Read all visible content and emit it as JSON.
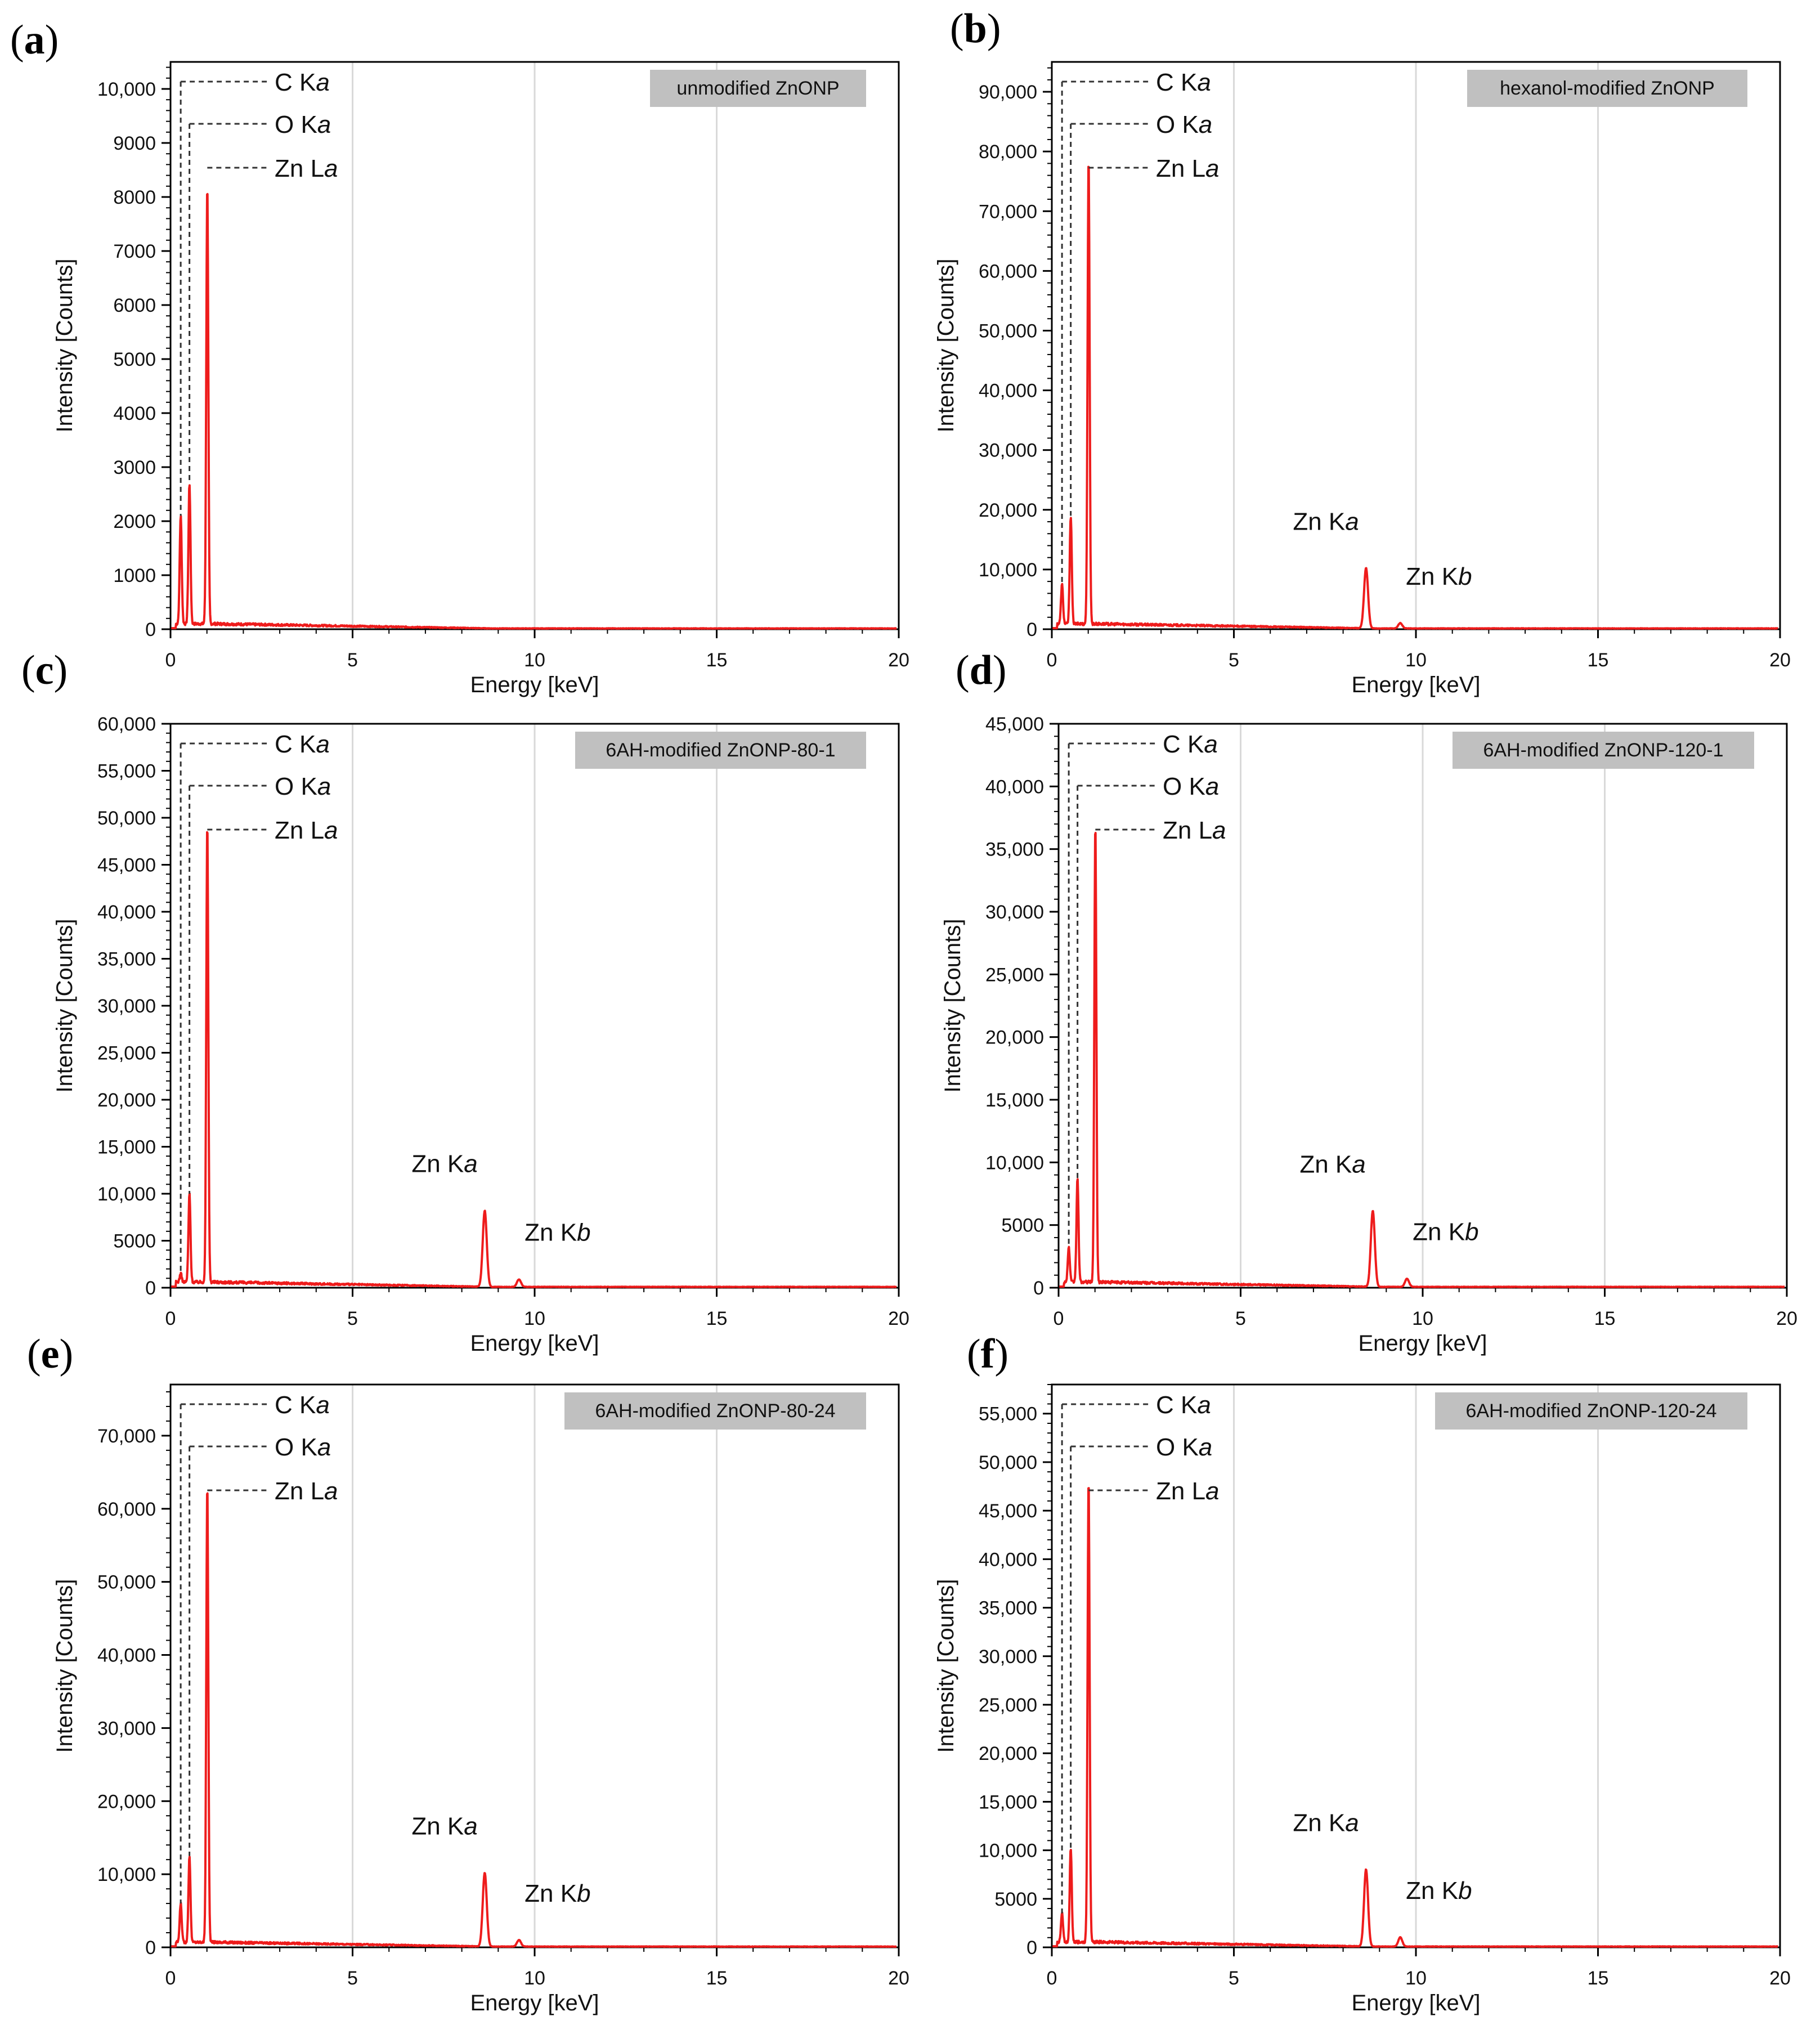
{
  "figure": {
    "colors": {
      "trace": "#ee1c1c",
      "grid": "#d9d9d9",
      "axis": "#000000",
      "box": "#c0c0c0",
      "leader": "#333333"
    },
    "xlabel": "Energy [keV]",
    "ylabel": "Intensity [Counts]"
  },
  "chart_data": [
    {
      "type": "line",
      "letter": "a",
      "title": "unmodified ZnONP",
      "xlabel": "Energy [keV]",
      "ylabel": "Intensity [Counts]",
      "xlim": [
        0,
        20
      ],
      "ylim": [
        0,
        10500
      ],
      "xticks": [
        "0",
        "5",
        "10",
        "15",
        "20"
      ],
      "yticks": [
        0,
        1000,
        2000,
        3000,
        4000,
        5000,
        6000,
        7000,
        8000,
        9000,
        10000
      ],
      "ytick_labels": [
        "0",
        "1000",
        "2000",
        "3000",
        "4000",
        "5000",
        "6000",
        "7000",
        "8000",
        "9000",
        "10,000"
      ],
      "peaks": [
        {
          "label": "C Ka",
          "energy": 0.28,
          "counts": 2100
        },
        {
          "label": "O Ka",
          "energy": 0.52,
          "counts": 2700
        },
        {
          "label": "Zn La",
          "energy": 1.01,
          "counts": 8250
        }
      ],
      "zn_k": null,
      "annotations": {
        "c": "C Ka",
        "o": "O Ka",
        "znl": "Zn La"
      },
      "background": 100
    },
    {
      "type": "line",
      "letter": "b",
      "title": "hexanol-modified ZnONP",
      "xlabel": "Energy [keV]",
      "ylabel": "Intensity [Counts]",
      "xlim": [
        0,
        20
      ],
      "ylim": [
        0,
        95000
      ],
      "xticks": [
        "0",
        "5",
        "10",
        "15",
        "20"
      ],
      "yticks": [
        0,
        10000,
        20000,
        30000,
        40000,
        50000,
        60000,
        70000,
        80000,
        90000
      ],
      "ytick_labels": [
        "0",
        "10,000",
        "20,000",
        "30,000",
        "40,000",
        "50,000",
        "60,000",
        "70,000",
        "80,000",
        "90,000"
      ],
      "peaks": [
        {
          "label": "C Ka",
          "energy": 0.28,
          "counts": 7500
        },
        {
          "label": "O Ka",
          "energy": 0.52,
          "counts": 19000
        },
        {
          "label": "Zn La",
          "energy": 1.01,
          "counts": 79000
        },
        {
          "label": "Zn Ka",
          "energy": 8.63,
          "counts": 11000
        },
        {
          "label": "Zn Kb",
          "energy": 9.57,
          "counts": 1800
        }
      ],
      "zn_k": {
        "ka": "Zn Ka",
        "kb": "Zn Kb"
      },
      "annotations": {
        "c": "C Ka",
        "o": "O Ka",
        "znl": "Zn La"
      },
      "background": 900
    },
    {
      "type": "line",
      "letter": "c",
      "title": "6AH-modified ZnONP-80-1",
      "xlabel": "Energy [keV]",
      "ylabel": "Intensity [Counts]",
      "xlim": [
        0,
        20
      ],
      "ylim": [
        0,
        60000
      ],
      "xticks": [
        "0",
        "5",
        "10",
        "15",
        "20"
      ],
      "yticks": [
        0,
        5000,
        10000,
        15000,
        20000,
        25000,
        30000,
        35000,
        40000,
        45000,
        50000,
        55000,
        60000
      ],
      "ytick_labels": [
        "0",
        "5000",
        "10,000",
        "15,000",
        "20,000",
        "25,000",
        "30,000",
        "35,000",
        "40,000",
        "45,000",
        "50,000",
        "55,000",
        "60,000"
      ],
      "peaks": [
        {
          "label": "C Ka",
          "energy": 0.28,
          "counts": 1500
        },
        {
          "label": "O Ka",
          "energy": 0.52,
          "counts": 10000
        },
        {
          "label": "Zn La",
          "energy": 1.01,
          "counts": 49500
        },
        {
          "label": "Zn Ka",
          "energy": 8.63,
          "counts": 8700
        },
        {
          "label": "Zn Kb",
          "energy": 9.57,
          "counts": 1400
        }
      ],
      "zn_k": {
        "ka": "Zn Ka",
        "kb": "Zn Kb"
      },
      "annotations": {
        "c": "C Ka",
        "o": "O Ka",
        "znl": "Zn La"
      },
      "background": 600
    },
    {
      "type": "line",
      "letter": "d",
      "title": "6AH-modified ZnONP-120-1",
      "xlabel": "Energy [keV]",
      "ylabel": "Intensity [Counts]",
      "xlim": [
        0,
        20
      ],
      "ylim": [
        0,
        45000
      ],
      "xticks": [
        "0",
        "5",
        "10",
        "15",
        "20"
      ],
      "yticks": [
        0,
        5000,
        10000,
        15000,
        20000,
        25000,
        30000,
        35000,
        40000,
        45000
      ],
      "ytick_labels": [
        "0",
        "5000",
        "10,000",
        "15,000",
        "20,000",
        "25,000",
        "30,000",
        "35,000",
        "40,000",
        "45,000"
      ],
      "peaks": [
        {
          "label": "C Ka",
          "energy": 0.28,
          "counts": 3200
        },
        {
          "label": "O Ka",
          "energy": 0.52,
          "counts": 8700
        },
        {
          "label": "Zn La",
          "energy": 1.01,
          "counts": 37000
        },
        {
          "label": "Zn Ka",
          "energy": 8.63,
          "counts": 6500
        },
        {
          "label": "Zn Kb",
          "energy": 9.57,
          "counts": 1100
        }
      ],
      "zn_k": {
        "ka": "Zn Ka",
        "kb": "Zn Kb"
      },
      "annotations": {
        "c": "C Ka",
        "o": "O Ka",
        "znl": "Zn La"
      },
      "background": 450
    },
    {
      "type": "line",
      "letter": "e",
      "title": "6AH-modified ZnONP-80-24",
      "xlabel": "Energy [keV]",
      "ylabel": "Intensity [Counts]",
      "xlim": [
        0,
        20
      ],
      "ylim": [
        0,
        77000
      ],
      "xticks": [
        "0",
        "5",
        "10",
        "15",
        "20"
      ],
      "yticks": [
        0,
        10000,
        20000,
        30000,
        40000,
        50000,
        60000,
        70000
      ],
      "ytick_labels": [
        "0",
        "10,000",
        "20,000",
        "30,000",
        "40,000",
        "50,000",
        "60,000",
        "70,000"
      ],
      "peaks": [
        {
          "label": "C Ka",
          "energy": 0.28,
          "counts": 6000
        },
        {
          "label": "O Ka",
          "energy": 0.52,
          "counts": 12500
        },
        {
          "label": "Zn La",
          "energy": 1.01,
          "counts": 63500
        },
        {
          "label": "Zn Ka",
          "energy": 8.63,
          "counts": 10800
        },
        {
          "label": "Zn Kb",
          "energy": 9.57,
          "counts": 1600
        }
      ],
      "zn_k": {
        "ka": "Zn Ka",
        "kb": "Zn Kb"
      },
      "annotations": {
        "c": "C Ka",
        "o": "O Ka",
        "znl": "Zn La"
      },
      "background": 700
    },
    {
      "type": "line",
      "letter": "f",
      "title": "6AH-modified ZnONP-120-24",
      "xlabel": "Energy [keV]",
      "ylabel": "Intensity [Counts]",
      "xlim": [
        0,
        20
      ],
      "ylim": [
        0,
        58000
      ],
      "xticks": [
        "0",
        "5",
        "10",
        "15",
        "20"
      ],
      "yticks": [
        0,
        5000,
        10000,
        15000,
        20000,
        25000,
        30000,
        35000,
        40000,
        45000,
        50000,
        55000
      ],
      "ytick_labels": [
        "0",
        "5000",
        "10,000",
        "15,000",
        "20,000",
        "25,000",
        "30,000",
        "35,000",
        "40,000",
        "45,000",
        "50,000",
        "55,000"
      ],
      "peaks": [
        {
          "label": "C Ka",
          "energy": 0.28,
          "counts": 3500
        },
        {
          "label": "O Ka",
          "energy": 0.52,
          "counts": 10200
        },
        {
          "label": "Zn La",
          "energy": 1.01,
          "counts": 48500
        },
        {
          "label": "Zn Ka",
          "energy": 8.63,
          "counts": 8500
        },
        {
          "label": "Zn Kb",
          "energy": 9.57,
          "counts": 1500
        }
      ],
      "zn_k": {
        "ka": "Zn Ka",
        "kb": "Zn Kb"
      },
      "annotations": {
        "c": "C Ka",
        "o": "O Ka",
        "znl": "Zn La"
      },
      "background": 550
    }
  ]
}
